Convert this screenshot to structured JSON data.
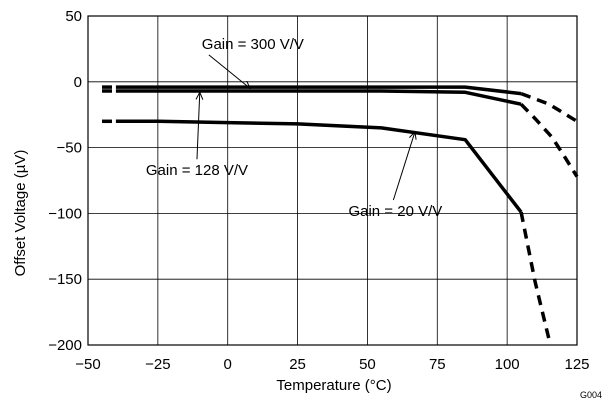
{
  "chart_data": {
    "type": "line",
    "xlabel": "Temperature (°C)",
    "ylabel": "Offset Voltage (µV)",
    "xlim": [
      -50,
      125
    ],
    "ylim": [
      -200,
      50
    ],
    "x_ticks": [
      -50,
      -25,
      0,
      25,
      50,
      75,
      100,
      125
    ],
    "y_ticks": [
      50,
      0,
      -50,
      -100,
      -150,
      -200
    ],
    "x_tick_labels": [
      "−50",
      "−25",
      "0",
      "25",
      "50",
      "75",
      "100",
      "125"
    ],
    "y_tick_labels": [
      "50",
      "0",
      "−50",
      "−100",
      "−150",
      "−200"
    ],
    "grid": true,
    "figure_code": "G004",
    "series": [
      {
        "name": "Gain = 300 V/V",
        "solid": {
          "x": [
            -40,
            -10,
            25,
            55,
            85,
            105
          ],
          "y": [
            -4,
            -4,
            -4,
            -4,
            -4,
            -9
          ]
        },
        "dashed": [
          {
            "x": [
              -45,
              -40
            ],
            "y": [
              -4,
              -4
            ]
          },
          {
            "x": [
              105,
              115,
              125
            ],
            "y": [
              -9,
              -17,
              -30
            ]
          }
        ]
      },
      {
        "name": "Gain = 128 V/V",
        "solid": {
          "x": [
            -40,
            -10,
            25,
            55,
            85,
            105
          ],
          "y": [
            -7,
            -7,
            -7,
            -7,
            -8,
            -17
          ]
        },
        "dashed": [
          {
            "x": [
              -45,
              -40
            ],
            "y": [
              -7,
              -7
            ]
          },
          {
            "x": [
              105,
              110,
              116,
              120,
              125
            ],
            "y": [
              -17,
              -28,
              -42,
              -55,
              -72
            ]
          }
        ]
      },
      {
        "name": "Gain = 20 V/V",
        "solid": {
          "x": [
            -40,
            -25,
            0,
            25,
            55,
            85,
            105
          ],
          "y": [
            -30,
            -30,
            -31,
            -32,
            -35,
            -44,
            -99
          ]
        },
        "dashed": [
          {
            "x": [
              -45,
              -40
            ],
            "y": [
              -30,
              -30
            ]
          },
          {
            "x": [
              105,
              110,
              115
            ],
            "y": [
              -99,
              -152,
              -196
            ]
          }
        ]
      }
    ],
    "annotations": [
      {
        "text": "Gain = 300 V/V",
        "text_x": 9,
        "text_y": 25,
        "arrow_to_x": 8,
        "arrow_to_y": -5
      },
      {
        "text": "Gain = 128 V/V",
        "text_x": -11,
        "text_y": -71,
        "arrow_to_x": -10,
        "arrow_to_y": -8
      },
      {
        "text": "Gain = 20 V/V",
        "text_x": 60,
        "text_y": -102,
        "arrow_to_x": 67,
        "arrow_to_y": -38
      }
    ]
  }
}
